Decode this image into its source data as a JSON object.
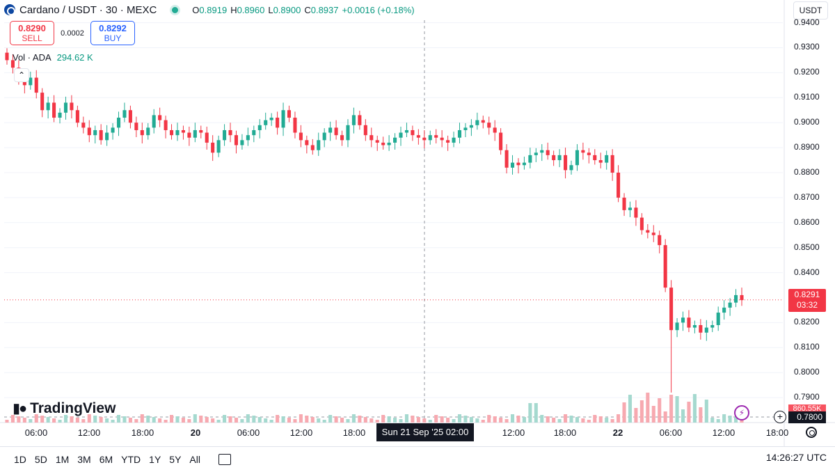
{
  "header": {
    "title": "Cardano / USDT · 30 · MEXC",
    "ohlc": {
      "o_label": "O",
      "o": "0.8919",
      "h_label": "H",
      "h": "0.8960",
      "l_label": "L",
      "l": "0.8900",
      "c_label": "C",
      "c": "0.8937",
      "change": "+0.0016 (+0.18%)"
    },
    "status_color": "#22ab94"
  },
  "trade": {
    "sell_price": "0.8290",
    "sell_label": "SELL",
    "spread": "0.0002",
    "buy_price": "0.8292",
    "buy_label": "BUY"
  },
  "volume_legend": {
    "label": "Vol · ADA",
    "value": "294.62 K"
  },
  "currency": "USDT",
  "price_axis": {
    "ticks": [
      "0.9400",
      "0.9300",
      "0.9200",
      "0.9100",
      "0.9000",
      "0.8900",
      "0.8800",
      "0.8700",
      "0.8600",
      "0.8500",
      "0.8400",
      "0.8200",
      "0.8100",
      "0.8000",
      "0.7900"
    ],
    "current_price": "0.8291",
    "countdown": "03:32",
    "volume_tag": "860.55K",
    "low_tag": "0.7800"
  },
  "time_axis": {
    "labels": [
      "06:00",
      "12:00",
      "18:00",
      "20",
      "06:00",
      "12:00",
      "18:00",
      "12:00",
      "18:00",
      "22",
      "06:00",
      "12:00",
      "18:00"
    ],
    "crosshair_label": "Sun 21 Sep '25   02:00"
  },
  "logo_text": "TradingView",
  "ranges": [
    "1D",
    "5D",
    "1M",
    "3M",
    "6M",
    "YTD",
    "1Y",
    "5Y",
    "All"
  ],
  "clock": "14:26:27 UTC",
  "colors": {
    "up": "#22ab94",
    "down": "#f23645",
    "vol_up": "#a5d9cf",
    "vol_down": "#f7a9b0"
  },
  "chart_data": {
    "type": "candlestick",
    "symbol": "Cardano / USDT",
    "interval": "30",
    "ylim": [
      0.78,
      0.941
    ],
    "y_ticks": [
      0.79,
      0.8,
      0.81,
      0.82,
      0.84,
      0.85,
      0.86,
      0.87,
      0.88,
      0.89,
      0.9,
      0.91,
      0.92,
      0.93,
      0.94
    ],
    "x_ticks": [
      "06:00",
      "12:00",
      "18:00",
      "20",
      "06:00",
      "12:00",
      "18:00",
      "Sun 21 Sep '25 02:00",
      "12:00",
      "18:00",
      "22",
      "06:00",
      "12:00",
      "18:00"
    ],
    "last_price": 0.8291,
    "closes": [
      0.925,
      0.922,
      0.918,
      0.915,
      0.918,
      0.912,
      0.905,
      0.908,
      0.902,
      0.904,
      0.908,
      0.905,
      0.9,
      0.898,
      0.895,
      0.897,
      0.893,
      0.896,
      0.898,
      0.902,
      0.905,
      0.9,
      0.897,
      0.895,
      0.898,
      0.903,
      0.901,
      0.897,
      0.895,
      0.897,
      0.896,
      0.894,
      0.897,
      0.896,
      0.892,
      0.888,
      0.893,
      0.897,
      0.895,
      0.891,
      0.893,
      0.895,
      0.897,
      0.899,
      0.901,
      0.902,
      0.898,
      0.905,
      0.902,
      0.896,
      0.893,
      0.891,
      0.889,
      0.893,
      0.896,
      0.898,
      0.895,
      0.893,
      0.899,
      0.903,
      0.899,
      0.895,
      0.893,
      0.892,
      0.891,
      0.892,
      0.894,
      0.896,
      0.897,
      0.895,
      0.894,
      0.893,
      0.895,
      0.894,
      0.893,
      0.892,
      0.894,
      0.897,
      0.898,
      0.899,
      0.901,
      0.9,
      0.898,
      0.896,
      0.889,
      0.882,
      0.884,
      0.883,
      0.884,
      0.887,
      0.888,
      0.889,
      0.887,
      0.885,
      0.887,
      0.881,
      0.883,
      0.889,
      0.888,
      0.887,
      0.885,
      0.884,
      0.887,
      0.88,
      0.87,
      0.865,
      0.866,
      0.862,
      0.857,
      0.856,
      0.855,
      0.851,
      0.834,
      0.817,
      0.82,
      0.822,
      0.818,
      0.819,
      0.816,
      0.818,
      0.819,
      0.824,
      0.826,
      0.828,
      0.831,
      0.829
    ],
    "volume_unit": "K",
    "volume_note": "volume bars shown as histogram; spikes near 22 06:00"
  }
}
